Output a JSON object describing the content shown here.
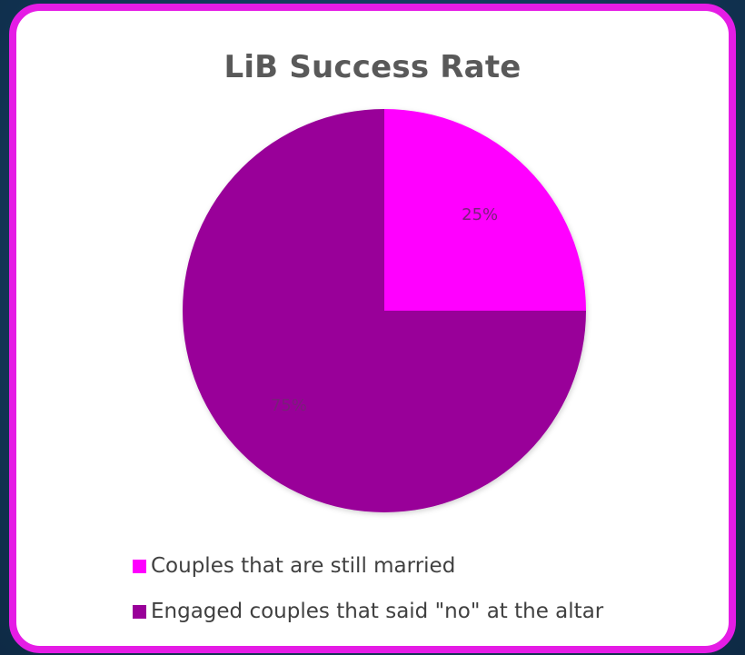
{
  "chart_data": {
    "type": "pie",
    "title": "LiB Success Rate",
    "start_angle_deg": 0,
    "direction": "clockwise",
    "slices": [
      {
        "label": "Couples that are still married",
        "value": 25,
        "data_label": "25%",
        "color": "#ff00ff"
      },
      {
        "label": "Engaged couples that said \"no\" at the altar",
        "value": 75,
        "data_label": "75%",
        "color": "#990099"
      }
    ],
    "legend": {
      "placement": "bottom-left",
      "items": [
        "Couples that are still married",
        "Engaged couples that said \"no\" at the altar"
      ]
    }
  },
  "colors": {
    "card_border": "#e51ce5",
    "background": "#143a5c",
    "title_text": "#595959",
    "label_text": "#7a1f7a",
    "legend_text": "#404040"
  }
}
